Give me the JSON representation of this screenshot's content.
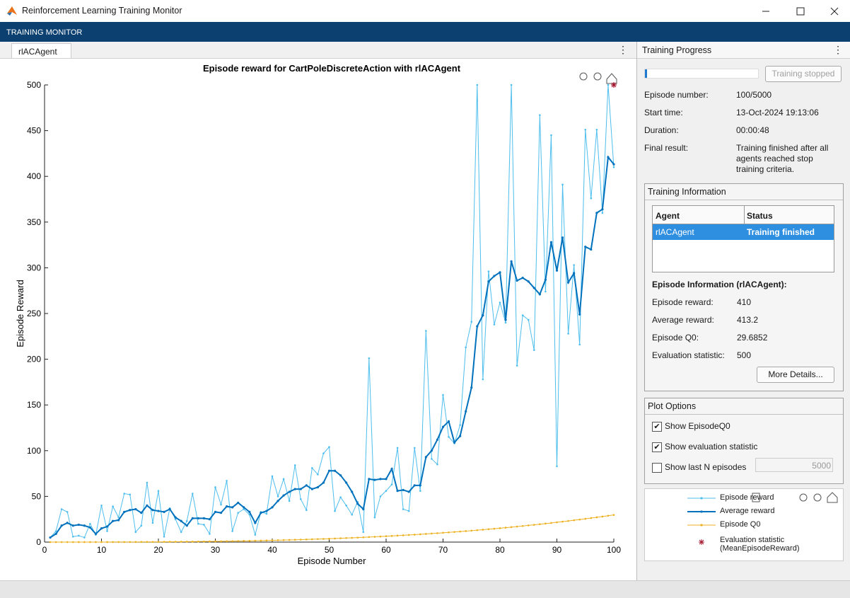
{
  "window": {
    "title": "Reinforcement Learning Training Monitor"
  },
  "toolbar": {
    "title": "TRAINING MONITOR"
  },
  "tab": {
    "label": "rlACAgent"
  },
  "chart_data": {
    "type": "line",
    "title": "Episode reward for CartPoleDiscreteAction with rlACAgent",
    "x_label": "Episode Number",
    "y_label": "Episode Reward",
    "x": [
      1,
      2,
      3,
      4,
      5,
      6,
      7,
      8,
      9,
      10,
      11,
      12,
      13,
      14,
      15,
      16,
      17,
      18,
      19,
      20,
      21,
      22,
      23,
      24,
      25,
      26,
      27,
      28,
      29,
      30,
      31,
      32,
      33,
      34,
      35,
      36,
      37,
      38,
      39,
      40,
      41,
      42,
      43,
      44,
      45,
      46,
      47,
      48,
      49,
      50,
      51,
      52,
      53,
      54,
      55,
      56,
      57,
      58,
      59,
      60,
      61,
      62,
      63,
      64,
      65,
      66,
      67,
      68,
      69,
      70,
      71,
      72,
      73,
      74,
      75,
      76,
      77,
      78,
      79,
      80,
      81,
      82,
      83,
      84,
      85,
      86,
      87,
      88,
      89,
      90,
      91,
      92,
      93,
      94,
      95,
      96,
      97,
      98,
      99,
      100
    ],
    "xlim": [
      0,
      100
    ],
    "xticks": [
      0,
      10,
      20,
      30,
      40,
      50,
      60,
      70,
      80,
      90,
      100
    ],
    "ylim": [
      0,
      500
    ],
    "yticks": [
      0,
      50,
      100,
      150,
      200,
      250,
      300,
      350,
      400,
      450,
      500
    ],
    "grid": false,
    "series": [
      {
        "name": "Episode reward",
        "color": "#4dbeee",
        "marker": "dot",
        "width": 1,
        "values": [
          5,
          12,
          36,
          33,
          6,
          7,
          5,
          20,
          8,
          40,
          12,
          39,
          27,
          53,
          52,
          11,
          18,
          65,
          21,
          56,
          6,
          37,
          25,
          11,
          23,
          53,
          20,
          19,
          9,
          60,
          41,
          67,
          12,
          32,
          36,
          30,
          8,
          33,
          31,
          72,
          50,
          69,
          45,
          84,
          47,
          35,
          81,
          74,
          97,
          104,
          34,
          49,
          40,
          30,
          44,
          11,
          201,
          27,
          50,
          56,
          63,
          103,
          36,
          34,
          103,
          56,
          231,
          91,
          85,
          161,
          115,
          108,
          128,
          213,
          241,
          500,
          178,
          296,
          238,
          262,
          240,
          500,
          193,
          248,
          243,
          210,
          467,
          274,
          445,
          83,
          391,
          228,
          303,
          216,
          451,
          376,
          451,
          360,
          500,
          410
        ]
      },
      {
        "name": "Average reward",
        "color": "#0072bd",
        "marker": "dot",
        "width": 2,
        "values": [
          5,
          9,
          18,
          21,
          18,
          19,
          18,
          16,
          9,
          15,
          17,
          23,
          24,
          33,
          35,
          36,
          32,
          40,
          35,
          34,
          33,
          36,
          27,
          23,
          18,
          26,
          26,
          26,
          25,
          33,
          32,
          39,
          38,
          43,
          38,
          33,
          21,
          32,
          34,
          38,
          45,
          51,
          55,
          58,
          58,
          62,
          58,
          60,
          65,
          78,
          78,
          73,
          65,
          55,
          42,
          36,
          69,
          68,
          69,
          69,
          80,
          56,
          57,
          55,
          62,
          62,
          93,
          100,
          112,
          126,
          132,
          109,
          116,
          143,
          169,
          236,
          248,
          285,
          291,
          295,
          243,
          307,
          286,
          289,
          285,
          278,
          271,
          287,
          328,
          297,
          333,
          284,
          294,
          249,
          323,
          320,
          360,
          364,
          421,
          413.2
        ]
      },
      {
        "name": "Episode Q0",
        "color": "#edb120",
        "marker": "dot",
        "width": 1,
        "values": [
          0,
          0,
          0,
          0,
          0,
          0.01,
          0.01,
          0.02,
          0.02,
          0.03,
          0.04,
          0.05,
          0.07,
          0.08,
          0.1,
          0.12,
          0.15,
          0.17,
          0.2,
          0.24,
          0.28,
          0.32,
          0.36,
          0.41,
          0.46,
          0.52,
          0.58,
          0.65,
          0.72,
          0.8,
          0.88,
          0.97,
          1.07,
          1.17,
          1.27,
          1.39,
          1.5,
          1.63,
          1.76,
          1.9,
          2.05,
          2.2,
          2.36,
          2.53,
          2.71,
          2.89,
          3.08,
          3.28,
          3.49,
          3.71,
          3.94,
          4.18,
          4.42,
          4.68,
          4.94,
          5.22,
          5.5,
          5.8,
          6.1,
          6.42,
          6.74,
          7.08,
          7.43,
          7.79,
          8.16,
          8.54,
          8.93,
          9.34,
          9.76,
          10.19,
          10.63,
          11.09,
          11.55,
          12.03,
          12.53,
          13.04,
          13.56,
          14.09,
          14.64,
          15.21,
          15.78,
          16.38,
          16.98,
          17.6,
          18.24,
          18.89,
          19.56,
          20.24,
          20.94,
          21.65,
          22.38,
          23.13,
          23.89,
          24.67,
          25.46,
          26.28,
          27.11,
          27.95,
          28.82,
          29.6852
        ]
      },
      {
        "name": "Evaluation statistic (MeanEpisodeReward)",
        "color": "#a2142f",
        "marker": "asterisk",
        "width": 0,
        "x": [
          100
        ],
        "values": [
          500
        ]
      }
    ]
  },
  "progress": {
    "title": "Training Progress",
    "button": "Training stopped",
    "rows": [
      [
        "Episode number:",
        "100/5000"
      ],
      [
        "Start time:",
        "13-Oct-2024 19:13:06"
      ],
      [
        "Duration:",
        "00:00:48"
      ],
      [
        "Final result:",
        "Training finished after all agents reached stop training criteria."
      ]
    ],
    "training_info": {
      "title": "Training Information",
      "columns": [
        "Agent",
        "Status"
      ],
      "rows": [
        [
          "rlACAgent",
          "Training finished"
        ]
      ]
    },
    "episode_info": {
      "title": "Episode Information (rlACAgent):",
      "rows": [
        [
          "Episode reward:",
          410
        ],
        [
          "Average reward:",
          413.2
        ],
        [
          "Episode Q0:",
          29.6852
        ],
        [
          "Evaluation statistic:",
          500
        ]
      ],
      "button": "More Details..."
    },
    "plot_options": {
      "title": "Plot Options",
      "options": [
        {
          "label": "Show EpisodeQ0",
          "checked": true
        },
        {
          "label": "Show evaluation statistic",
          "checked": true
        },
        {
          "label": "Show last N episodes",
          "checked": false
        }
      ],
      "n_episodes": 5000
    }
  }
}
